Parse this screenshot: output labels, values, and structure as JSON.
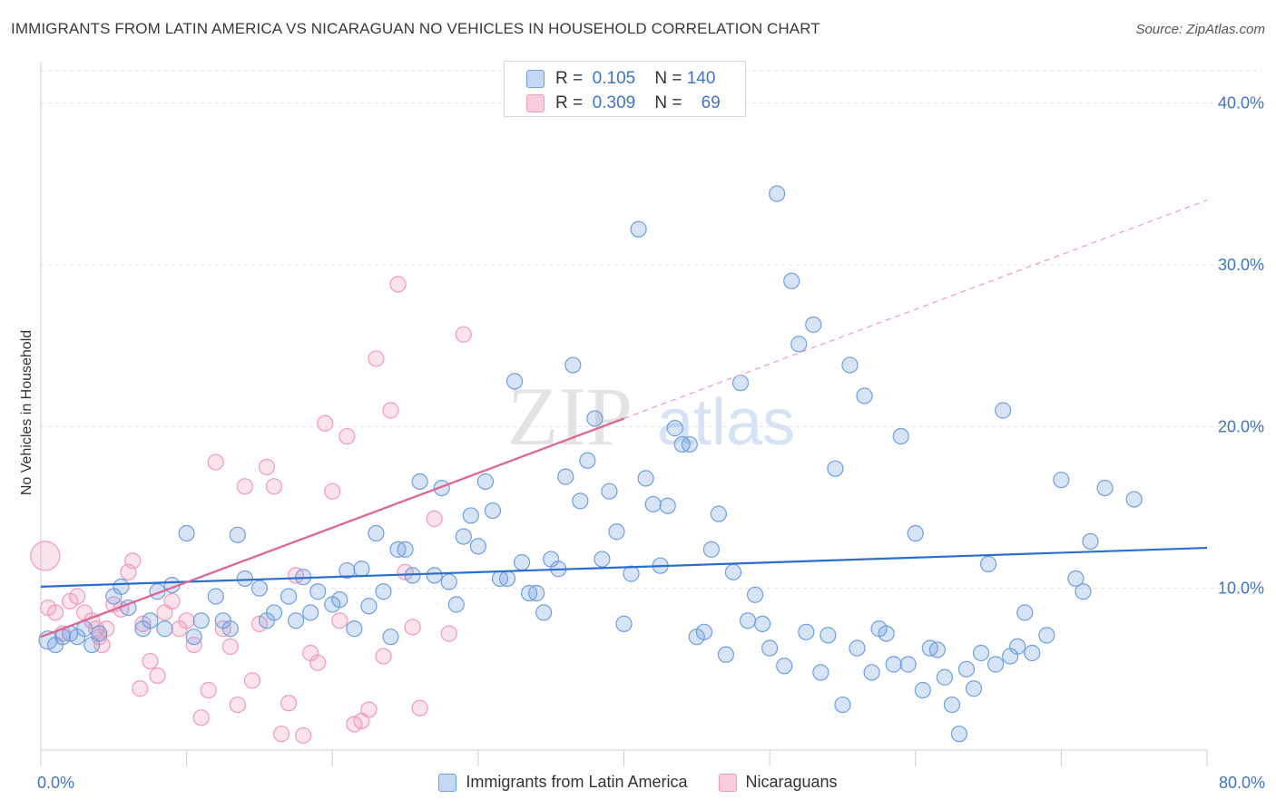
{
  "title": "IMMIGRANTS FROM LATIN AMERICA VS NICARAGUAN NO VEHICLES IN HOUSEHOLD CORRELATION CHART",
  "source": "Source: ZipAtlas.com",
  "watermark": {
    "zip": "ZIP",
    "atlas": "atlas"
  },
  "colors": {
    "blue": "#6f9fe0",
    "blue_line": "#2a6fcf",
    "pink": "#f29ab6",
    "pink_line": "#e0628e",
    "tick_text": "#3f74c8"
  },
  "stats": [
    {
      "r_label": "R =",
      "r": "0.105",
      "n_label": "N =",
      "n": "140"
    },
    {
      "r_label": "R =",
      "r": "0.309",
      "n_label": "N =",
      "n": "69"
    }
  ],
  "chart_data": {
    "type": "scatter",
    "xlabel": "",
    "ylabel": "No Vehicles in Household",
    "xlim": [
      0,
      80
    ],
    "ylim": [
      0,
      42
    ],
    "x_ticks": [
      {
        "v": 0,
        "label": "0.0%"
      },
      {
        "v": 80,
        "label": "80.0%"
      }
    ],
    "y_ticks": [
      {
        "v": 10,
        "label": "10.0%"
      },
      {
        "v": 20,
        "label": "20.0%"
      },
      {
        "v": 30,
        "label": "30.0%"
      },
      {
        "v": 40,
        "label": "40.0%"
      }
    ],
    "grid": true,
    "legend_position": "bottom",
    "series": [
      {
        "name": "Immigrants from Latin America",
        "trend": {
          "x1": 0,
          "y1": 10.1,
          "x2": 80,
          "y2": 12.5,
          "dashed_to": null
        },
        "points": [
          [
            0.5,
            6.8
          ],
          [
            1,
            6.5
          ],
          [
            1.5,
            7
          ],
          [
            2,
            7.2
          ],
          [
            2.5,
            7
          ],
          [
            3,
            7.5
          ],
          [
            3.5,
            6.5
          ],
          [
            4,
            7.2
          ],
          [
            5,
            9.5
          ],
          [
            5.5,
            10.1
          ],
          [
            6,
            8.8
          ],
          [
            7,
            7.5
          ],
          [
            7.5,
            8
          ],
          [
            8,
            9.8
          ],
          [
            8.5,
            7.5
          ],
          [
            9,
            10.2
          ],
          [
            10,
            13.4
          ],
          [
            10.5,
            7
          ],
          [
            11,
            8
          ],
          [
            12,
            9.5
          ],
          [
            12.5,
            8
          ],
          [
            13,
            7.5
          ],
          [
            13.5,
            13.3
          ],
          [
            14,
            10.6
          ],
          [
            15,
            10
          ],
          [
            15.5,
            8
          ],
          [
            16,
            8.5
          ],
          [
            17,
            9.5
          ],
          [
            17.5,
            8
          ],
          [
            18,
            10.7
          ],
          [
            18.5,
            8.5
          ],
          [
            19,
            9.8
          ],
          [
            20,
            9
          ],
          [
            20.5,
            9.3
          ],
          [
            21,
            11.1
          ],
          [
            21.5,
            7.5
          ],
          [
            22,
            11.2
          ],
          [
            22.5,
            8.9
          ],
          [
            23,
            13.4
          ],
          [
            23.5,
            9.8
          ],
          [
            24,
            7
          ],
          [
            24.5,
            12.4
          ],
          [
            25,
            12.4
          ],
          [
            25.5,
            10.8
          ],
          [
            26,
            16.6
          ],
          [
            27,
            10.8
          ],
          [
            27.5,
            16.2
          ],
          [
            28,
            10.4
          ],
          [
            28.5,
            9
          ],
          [
            29,
            13.2
          ],
          [
            29.5,
            14.5
          ],
          [
            30,
            12.6
          ],
          [
            30.5,
            16.6
          ],
          [
            31,
            14.8
          ],
          [
            31.5,
            10.6
          ],
          [
            32,
            10.6
          ],
          [
            32.5,
            22.8
          ],
          [
            33,
            11.6
          ],
          [
            33.5,
            9.7
          ],
          [
            34,
            9.7
          ],
          [
            34.5,
            8.5
          ],
          [
            35,
            11.8
          ],
          [
            35.5,
            11.2
          ],
          [
            36,
            16.9
          ],
          [
            36.5,
            23.8
          ],
          [
            37,
            15.4
          ],
          [
            37.5,
            17.9
          ],
          [
            38,
            20.5
          ],
          [
            38.5,
            11.8
          ],
          [
            39,
            16
          ],
          [
            39.5,
            13.5
          ],
          [
            40,
            7.8
          ],
          [
            40.5,
            10.9
          ],
          [
            41,
            32.2
          ],
          [
            41.5,
            16.8
          ],
          [
            42,
            15.2
          ],
          [
            42.5,
            11.4
          ],
          [
            43,
            15.1
          ],
          [
            43.5,
            19.9
          ],
          [
            44,
            18.9
          ],
          [
            44.5,
            18.9
          ],
          [
            45,
            7
          ],
          [
            45.5,
            7.3
          ],
          [
            46,
            12.4
          ],
          [
            46.5,
            14.6
          ],
          [
            47,
            5.9
          ],
          [
            47.5,
            11
          ],
          [
            48,
            22.7
          ],
          [
            48.5,
            8
          ],
          [
            49,
            9.6
          ],
          [
            49.5,
            7.8
          ],
          [
            50,
            6.3
          ],
          [
            50.5,
            34.4
          ],
          [
            51,
            5.2
          ],
          [
            51.5,
            29
          ],
          [
            52,
            25.1
          ],
          [
            52.5,
            7.3
          ],
          [
            53,
            26.3
          ],
          [
            53.5,
            4.8
          ],
          [
            54,
            7.1
          ],
          [
            54.5,
            17.4
          ],
          [
            55,
            2.8
          ],
          [
            55.5,
            23.8
          ],
          [
            56,
            6.3
          ],
          [
            56.5,
            21.9
          ],
          [
            57,
            4.8
          ],
          [
            57.5,
            7.5
          ],
          [
            58,
            7.2
          ],
          [
            58.5,
            5.3
          ],
          [
            59,
            19.4
          ],
          [
            59.5,
            5.3
          ],
          [
            60,
            13.4
          ],
          [
            60.5,
            3.7
          ],
          [
            61,
            6.3
          ],
          [
            61.5,
            6.2
          ],
          [
            62,
            4.5
          ],
          [
            62.5,
            2.8
          ],
          [
            63,
            1.0
          ],
          [
            63.5,
            5
          ],
          [
            64,
            3.8
          ],
          [
            64.5,
            6
          ],
          [
            65,
            11.5
          ],
          [
            65.5,
            5.3
          ],
          [
            66,
            21
          ],
          [
            66.5,
            5.8
          ],
          [
            67,
            6.4
          ],
          [
            67.5,
            8.5
          ],
          [
            68,
            6
          ],
          [
            69,
            7.1
          ],
          [
            70,
            16.7
          ],
          [
            71,
            10.6
          ],
          [
            71.5,
            9.8
          ],
          [
            72,
            12.9
          ],
          [
            73,
            16.2
          ],
          [
            75,
            15.5
          ]
        ]
      },
      {
        "name": "Nicaraguans",
        "trend": {
          "x1": 0,
          "y1": 7.0,
          "x2": 40,
          "y2": 20.5,
          "dashed_to": [
            80,
            34
          ]
        },
        "points": [
          [
            0.3,
            12
          ],
          [
            0.5,
            8.8
          ],
          [
            1,
            8.5
          ],
          [
            1.5,
            7.2
          ],
          [
            2,
            9.2
          ],
          [
            2.5,
            9.5
          ],
          [
            3,
            8.5
          ],
          [
            3.5,
            8
          ],
          [
            3.8,
            7.5
          ],
          [
            4,
            7
          ],
          [
            4.2,
            6.5
          ],
          [
            4.5,
            7.5
          ],
          [
            5,
            9
          ],
          [
            5.5,
            8.7
          ],
          [
            6,
            11
          ],
          [
            6.3,
            11.7
          ],
          [
            6.8,
            3.8
          ],
          [
            7,
            7.8
          ],
          [
            7.5,
            5.5
          ],
          [
            8,
            4.6
          ],
          [
            8.5,
            8.5
          ],
          [
            9,
            9.2
          ],
          [
            9.5,
            7.5
          ],
          [
            10,
            8
          ],
          [
            10.5,
            6.5
          ],
          [
            11,
            2
          ],
          [
            11.5,
            3.7
          ],
          [
            12,
            17.8
          ],
          [
            12.5,
            7.5
          ],
          [
            13,
            6.4
          ],
          [
            13.5,
            2.8
          ],
          [
            14,
            16.3
          ],
          [
            14.5,
            4.3
          ],
          [
            15,
            7.8
          ],
          [
            15.5,
            17.5
          ],
          [
            16,
            16.3
          ],
          [
            16.5,
            1
          ],
          [
            17,
            2.9
          ],
          [
            17.5,
            10.8
          ],
          [
            18,
            0.9
          ],
          [
            18.5,
            6
          ],
          [
            19,
            5.4
          ],
          [
            19.5,
            20.2
          ],
          [
            20,
            16
          ],
          [
            20.5,
            8
          ],
          [
            21,
            19.4
          ],
          [
            21.5,
            1.6
          ],
          [
            22,
            1.8
          ],
          [
            22.5,
            2.5
          ],
          [
            23,
            24.2
          ],
          [
            23.5,
            5.8
          ],
          [
            24,
            21
          ],
          [
            24.5,
            28.8
          ],
          [
            25,
            11
          ],
          [
            25.5,
            7.6
          ],
          [
            26,
            2.6
          ],
          [
            27,
            14.3
          ],
          [
            28,
            7.2
          ],
          [
            29,
            25.7
          ]
        ]
      }
    ]
  },
  "legend_labels": [
    "Immigrants from Latin America",
    "Nicaraguans"
  ]
}
